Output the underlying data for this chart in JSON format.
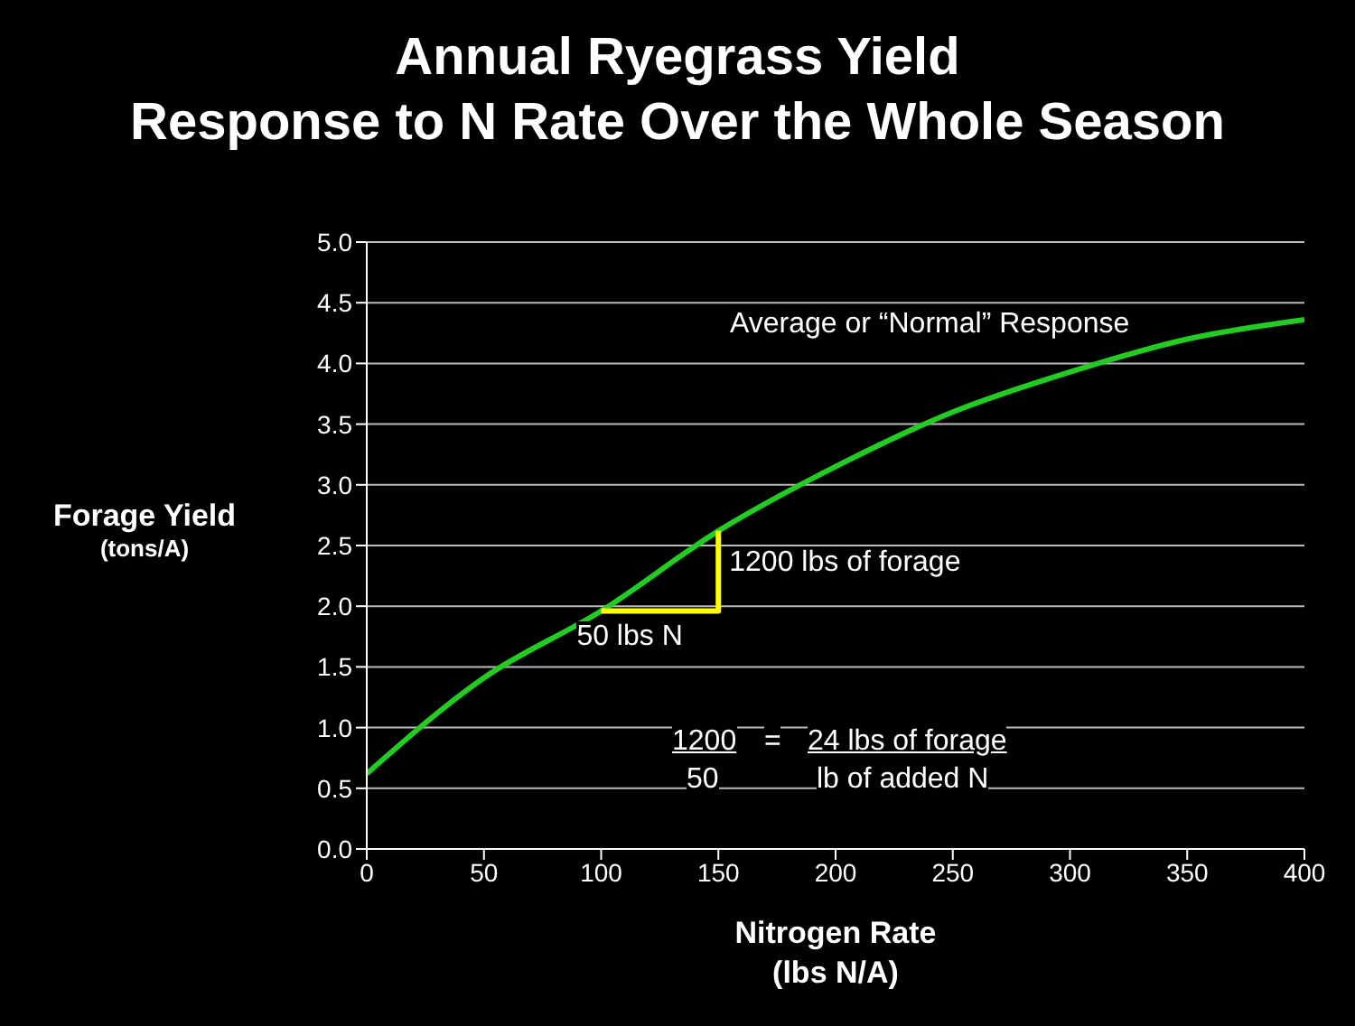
{
  "chart_data": {
    "type": "line",
    "title": "Annual Ryegrass Yield\nResponse to N Rate Over the Whole Season",
    "xlabel": "Nitrogen Rate\n(lbs N/A)",
    "ylabel": "Forage Yield\n(tons/A)",
    "annotations": [
      "Average or “Normal” Response",
      {
        "text": "1200 lbs of forage",
        "x": 150,
        "y": 2.3
      },
      {
        "text": "50 lbs N",
        "x": 125,
        "y": 1.96
      },
      "1200",
      "50",
      "=",
      "24 lbs of forage",
      "lb of added N"
    ],
    "series": [
      {
        "color": "#22cc22",
        "x": [
          0,
          50,
          100,
          150,
          200,
          250,
          300,
          350,
          400
        ],
        "values": [
          0.62,
          1.41,
          1.96,
          2.62,
          3.15,
          3.6,
          3.93,
          4.2,
          4.36
        ]
      },
      {
        "color": "#ffff00",
        "x": [
          100,
          150,
          150
        ],
        "values": [
          1.96,
          1.96,
          2.62
        ]
      }
    ],
    "xlim": [
      0,
      400
    ],
    "xticks": [
      0,
      50,
      100,
      150,
      200,
      250,
      300,
      350,
      400
    ],
    "ylim": [
      0,
      5
    ],
    "yticks": [
      {
        "value": 0,
        "label": "0.0"
      },
      0.5,
      {
        "value": 1,
        "label": "1.0"
      },
      1.5,
      {
        "value": 2,
        "label": "2.0"
      },
      2.5,
      {
        "value": 3,
        "label": "3.0"
      },
      3.5,
      {
        "value": 4,
        "label": "4.0"
      },
      4.5,
      {
        "value": 5,
        "label": "5.0"
      }
    ],
    "grid": "y",
    "marker": "none",
    "line_style": "solid"
  }
}
